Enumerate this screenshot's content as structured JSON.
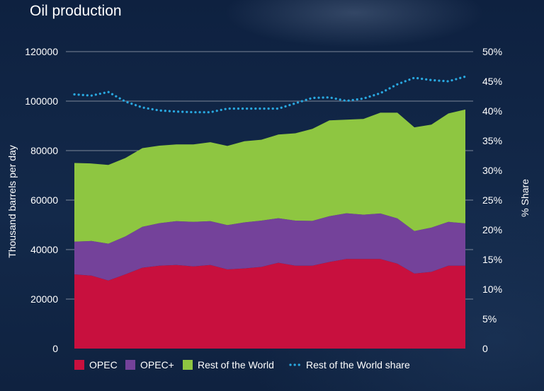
{
  "title": "Oil production",
  "chart_data": {
    "type": "area",
    "title": "Oil production",
    "ylabel": "Thousand barrels per day",
    "y2label": "% Share",
    "ylim": [
      0,
      120000
    ],
    "y2lim": [
      0,
      0.5
    ],
    "yticks": [
      "0",
      "20000",
      "40000",
      "60000",
      "80000",
      "100000",
      "120000"
    ],
    "y2ticks": [
      "0",
      "5%",
      "10%",
      "15%",
      "20%",
      "25%",
      "30%",
      "35%",
      "40%",
      "45%",
      "50%"
    ],
    "stacked": true,
    "grid": "horizontal",
    "legend_position": "bottom",
    "series": [
      {
        "name": "OPEC",
        "color": "#c8103e",
        "values": [
          30000,
          29500,
          27500,
          30000,
          32700,
          33500,
          33800,
          33200,
          33800,
          32000,
          32400,
          33000,
          34700,
          33500,
          33500,
          35000,
          36200,
          36200,
          36200,
          34300,
          30300,
          31000,
          33500,
          33500
        ]
      },
      {
        "name": "OPEC+",
        "color": "#74429a",
        "values": [
          13200,
          14000,
          14900,
          15300,
          16500,
          17200,
          17700,
          18000,
          17700,
          17900,
          18600,
          18700,
          18000,
          18200,
          18100,
          18500,
          18500,
          17900,
          18400,
          18300,
          17200,
          17900,
          17700,
          17100
        ]
      },
      {
        "name": "Rest of the World",
        "color": "#8ec641",
        "values": [
          31800,
          31300,
          31800,
          31700,
          31800,
          31300,
          31000,
          31300,
          31900,
          32000,
          32800,
          32700,
          33800,
          35300,
          37200,
          38700,
          37800,
          38700,
          40700,
          42700,
          41900,
          41600,
          43800,
          46000
        ]
      },
      {
        "name": "Rest of the World share",
        "color": "#29a8e0",
        "style": "dotted",
        "axis": "right",
        "values": [
          0.428,
          0.426,
          0.432,
          0.416,
          0.406,
          0.401,
          0.399,
          0.398,
          0.398,
          0.404,
          0.404,
          0.404,
          0.404,
          0.413,
          0.422,
          0.423,
          0.417,
          0.421,
          0.43,
          0.445,
          0.456,
          0.452,
          0.45,
          0.458
        ]
      }
    ]
  }
}
